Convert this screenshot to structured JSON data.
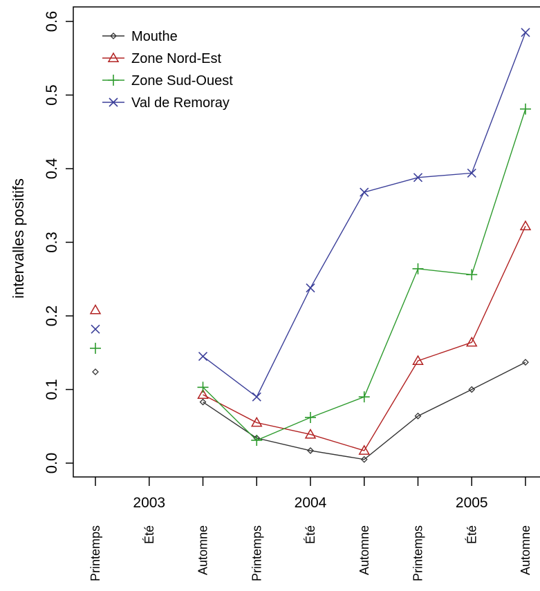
{
  "chart_data": {
    "type": "line",
    "title": "",
    "xlabel": "",
    "ylabel": "intervalles positifs",
    "ylim": [
      -0.02,
      0.6
    ],
    "yticks": [
      "0.0",
      "0.1",
      "0.2",
      "0.3",
      "0.4",
      "0.5",
      "0.6"
    ],
    "grid": false,
    "legend_position": "top-left",
    "x": [
      0,
      1,
      2,
      3,
      4,
      5,
      6,
      7,
      8
    ],
    "season_labels": [
      "Printemps",
      "Été",
      "Automne",
      "Printemps",
      "Été",
      "Automne",
      "Printemps",
      "Été",
      "Automne"
    ],
    "years": [
      {
        "label": "2003",
        "center": 1
      },
      {
        "label": "2004",
        "center": 4
      },
      {
        "label": "2005",
        "center": 7
      }
    ],
    "series": [
      {
        "name": "Mouthe",
        "color": "#333333",
        "marker": "diamond",
        "values": [
          0.124,
          null,
          0.083,
          0.034,
          0.017,
          0.005,
          0.064,
          0.1,
          0.137
        ]
      },
      {
        "name": "Zone Nord-Est",
        "color": "#b22222",
        "marker": "triangle",
        "values": [
          0.208,
          null,
          0.093,
          0.055,
          0.039,
          0.017,
          0.139,
          0.164,
          0.322
        ]
      },
      {
        "name": "Zone Sud-Ouest",
        "color": "#2e9b2e",
        "marker": "plus",
        "values": [
          0.156,
          null,
          0.103,
          0.031,
          0.062,
          0.09,
          0.264,
          0.256,
          0.481
        ]
      },
      {
        "name": "Val de Remoray",
        "color": "#3b3f99",
        "marker": "cross",
        "values": [
          0.182,
          null,
          0.145,
          0.09,
          0.238,
          0.368,
          0.388,
          0.394,
          0.585
        ]
      }
    ]
  }
}
